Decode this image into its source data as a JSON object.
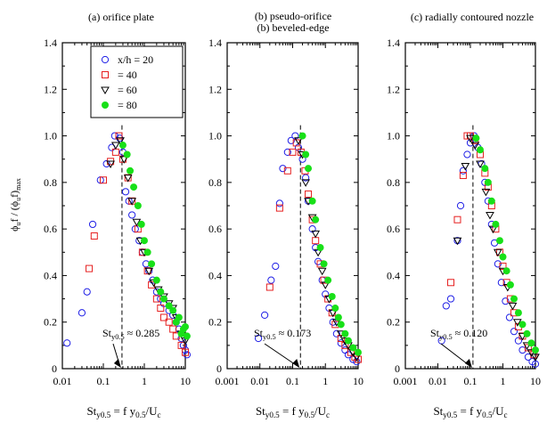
{
  "figure": {
    "ylabel_main": "ϕ",
    "ylabel_sub1": "u",
    "ylabel_mid": "f / (ϕ",
    "ylabel_sub2": "u",
    "ylabel_tail": "f)",
    "ylabel_sub3": "max"
  },
  "legend": {
    "entries": [
      {
        "label": "x/h = 20",
        "marker": "circle",
        "color": "#1f1fe6"
      },
      {
        "label": "= 40",
        "marker": "square",
        "color": "#e61f1f"
      },
      {
        "label": "= 60",
        "marker": "triangle-down",
        "color": "#000000"
      },
      {
        "label": "= 80",
        "marker": "filled-circle",
        "color": "#18e018"
      }
    ]
  },
  "chart_data": [
    {
      "type": "scatter",
      "title": "(a)  orifice plate",
      "xlabel": "St_y0.5 = f y_0.5/U_c",
      "xscale": "log",
      "xlim": [
        0.01,
        10
      ],
      "ylim": [
        0,
        1.4
      ],
      "xticks": [
        "0.01",
        "0.1",
        "1",
        "10"
      ],
      "yticks": [
        "0",
        "0.2",
        "0.4",
        "0.6",
        "0.8",
        "1.0",
        "1.2",
        "1.4"
      ],
      "annotation": "St_y0.5 ≈ 0.285",
      "peak_st": 0.285,
      "series": [
        {
          "name": "x/h = 20",
          "points": [
            [
              0.013,
              0.11
            ],
            [
              0.03,
              0.24
            ],
            [
              0.04,
              0.33
            ],
            [
              0.055,
              0.62
            ],
            [
              0.085,
              0.81
            ],
            [
              0.12,
              0.88
            ],
            [
              0.16,
              0.95
            ],
            [
              0.19,
              1.0
            ],
            [
              0.25,
              0.99
            ],
            [
              0.3,
              0.93
            ],
            [
              0.35,
              0.76
            ],
            [
              0.42,
              0.72
            ],
            [
              0.5,
              0.66
            ],
            [
              0.6,
              0.6
            ],
            [
              0.75,
              0.55
            ],
            [
              0.9,
              0.5
            ],
            [
              1.1,
              0.45
            ],
            [
              1.3,
              0.42
            ],
            [
              1.6,
              0.38
            ],
            [
              2.0,
              0.33
            ],
            [
              2.5,
              0.3
            ],
            [
              3.0,
              0.28
            ],
            [
              4.0,
              0.25
            ],
            [
              5.0,
              0.23
            ],
            [
              6.0,
              0.2
            ],
            [
              7.0,
              0.17
            ],
            [
              8.0,
              0.13
            ],
            [
              9.0,
              0.1
            ],
            [
              10.0,
              0.08
            ],
            [
              11.0,
              0.06
            ]
          ]
        },
        {
          "name": "= 40",
          "points": [
            [
              0.045,
              0.43
            ],
            [
              0.06,
              0.57
            ],
            [
              0.1,
              0.81
            ],
            [
              0.15,
              0.89
            ],
            [
              0.2,
              0.93
            ],
            [
              0.24,
              1.0
            ],
            [
              0.3,
              0.9
            ],
            [
              0.4,
              0.82
            ],
            [
              0.5,
              0.72
            ],
            [
              0.7,
              0.6
            ],
            [
              0.9,
              0.5
            ],
            [
              1.2,
              0.42
            ],
            [
              1.5,
              0.36
            ],
            [
              2.0,
              0.3
            ],
            [
              2.5,
              0.26
            ],
            [
              3.0,
              0.22
            ],
            [
              4.0,
              0.2
            ],
            [
              5.0,
              0.17
            ],
            [
              6.0,
              0.14
            ],
            [
              8.0,
              0.1
            ],
            [
              10.0,
              0.07
            ]
          ]
        },
        {
          "name": "= 60",
          "points": [
            [
              0.15,
              0.88
            ],
            [
              0.2,
              0.96
            ],
            [
              0.26,
              0.98
            ],
            [
              0.32,
              0.9
            ],
            [
              0.4,
              0.82
            ],
            [
              0.5,
              0.72
            ],
            [
              0.65,
              0.63
            ],
            [
              0.8,
              0.55
            ],
            [
              1.0,
              0.5
            ],
            [
              1.3,
              0.42
            ],
            [
              1.7,
              0.37
            ],
            [
              2.2,
              0.34
            ],
            [
              3.0,
              0.31
            ],
            [
              4.0,
              0.28
            ],
            [
              5.0,
              0.26
            ],
            [
              6.0,
              0.22
            ],
            [
              8.0,
              0.15
            ],
            [
              10.0,
              0.12
            ]
          ]
        },
        {
          "name": "= 80",
          "points": [
            [
              0.3,
              0.96
            ],
            [
              0.38,
              0.92
            ],
            [
              0.45,
              0.85
            ],
            [
              0.55,
              0.78
            ],
            [
              0.7,
              0.7
            ],
            [
              0.85,
              0.62
            ],
            [
              1.0,
              0.55
            ],
            [
              1.2,
              0.5
            ],
            [
              1.5,
              0.45
            ],
            [
              2.0,
              0.38
            ],
            [
              2.5,
              0.33
            ],
            [
              3.0,
              0.3
            ],
            [
              4.0,
              0.27
            ],
            [
              5.0,
              0.25
            ],
            [
              6.0,
              0.2
            ],
            [
              7.0,
              0.22
            ],
            [
              8.0,
              0.15
            ],
            [
              9.0,
              0.17
            ],
            [
              10.0,
              0.18
            ],
            [
              11.0,
              0.14
            ]
          ]
        }
      ]
    },
    {
      "type": "scatter",
      "title": "(b) pseudo-orifice",
      "title2": "(b) beveled-edge",
      "xlabel": "St_y0.5 = f y_0.5/U_c",
      "xscale": "log",
      "xlim": [
        0.001,
        10
      ],
      "ylim": [
        0,
        1.4
      ],
      "xticks": [
        "0.001",
        "0.01",
        "0.1",
        "1",
        "10"
      ],
      "yticks": [
        "0",
        "0.2",
        "0.4",
        "0.6",
        "0.8",
        "1.0",
        "1.2",
        "1.4"
      ],
      "annotation": "St_y0.5 ≈ 0.173",
      "peak_st": 0.173,
      "series": [
        {
          "name": "x/h = 20",
          "points": [
            [
              0.009,
              0.13
            ],
            [
              0.014,
              0.23
            ],
            [
              0.022,
              0.38
            ],
            [
              0.03,
              0.44
            ],
            [
              0.04,
              0.71
            ],
            [
              0.05,
              0.86
            ],
            [
              0.07,
              0.93
            ],
            [
              0.09,
              0.98
            ],
            [
              0.12,
              1.0
            ],
            [
              0.15,
              0.95
            ],
            [
              0.2,
              0.9
            ],
            [
              0.25,
              0.82
            ],
            [
              0.3,
              0.72
            ],
            [
              0.4,
              0.6
            ],
            [
              0.5,
              0.52
            ],
            [
              0.6,
              0.46
            ],
            [
              0.8,
              0.38
            ],
            [
              1.0,
              0.32
            ],
            [
              1.3,
              0.26
            ],
            [
              1.7,
              0.2
            ],
            [
              2.2,
              0.15
            ],
            [
              3.0,
              0.11
            ],
            [
              4.0,
              0.08
            ],
            [
              5.0,
              0.06
            ],
            [
              7.0,
              0.04
            ],
            [
              9.0,
              0.03
            ]
          ]
        },
        {
          "name": "= 40",
          "points": [
            [
              0.02,
              0.35
            ],
            [
              0.04,
              0.69
            ],
            [
              0.07,
              0.85
            ],
            [
              0.1,
              0.93
            ],
            [
              0.13,
              0.97
            ],
            [
              0.18,
              0.93
            ],
            [
              0.24,
              0.85
            ],
            [
              0.3,
              0.75
            ],
            [
              0.4,
              0.64
            ],
            [
              0.5,
              0.55
            ],
            [
              0.7,
              0.45
            ],
            [
              0.9,
              0.38
            ],
            [
              1.2,
              0.3
            ],
            [
              1.6,
              0.24
            ],
            [
              2.0,
              0.19
            ],
            [
              3.0,
              0.13
            ],
            [
              4.0,
              0.1
            ],
            [
              6.0,
              0.07
            ],
            [
              8.0,
              0.05
            ],
            [
              10.0,
              0.04
            ]
          ]
        },
        {
          "name": "= 60",
          "points": [
            [
              0.15,
              0.98
            ],
            [
              0.2,
              0.92
            ],
            [
              0.25,
              0.8
            ],
            [
              0.3,
              0.72
            ],
            [
              0.4,
              0.65
            ],
            [
              0.5,
              0.58
            ],
            [
              0.6,
              0.5
            ],
            [
              0.8,
              0.42
            ],
            [
              1.0,
              0.36
            ],
            [
              1.3,
              0.3
            ],
            [
              1.7,
              0.24
            ],
            [
              2.2,
              0.2
            ],
            [
              3.0,
              0.15
            ],
            [
              4.0,
              0.12
            ],
            [
              5.0,
              0.1
            ],
            [
              7.0,
              0.07
            ],
            [
              9.0,
              0.05
            ]
          ]
        },
        {
          "name": "= 80",
          "points": [
            [
              0.2,
              1.0
            ],
            [
              0.25,
              0.92
            ],
            [
              0.3,
              0.86
            ],
            [
              0.4,
              0.72
            ],
            [
              0.5,
              0.64
            ],
            [
              0.7,
              0.52
            ],
            [
              0.9,
              0.45
            ],
            [
              1.2,
              0.38
            ],
            [
              1.6,
              0.31
            ],
            [
              2.0,
              0.26
            ],
            [
              2.5,
              0.22
            ],
            [
              3.0,
              0.19
            ],
            [
              4.0,
              0.15
            ],
            [
              5.0,
              0.12
            ],
            [
              7.0,
              0.09
            ],
            [
              10.0,
              0.07
            ]
          ]
        }
      ]
    },
    {
      "type": "scatter",
      "title": "(c) radially contoured nozzle",
      "xlabel": "St_y0.5 = f y_0.5/U_c",
      "xscale": "log",
      "xlim": [
        0.001,
        10
      ],
      "ylim": [
        0,
        1.4
      ],
      "xticks": [
        "0.001",
        "0.01",
        "0.1",
        "1",
        "10"
      ],
      "yticks": [
        "0",
        "0.2",
        "0.4",
        "0.6",
        "0.8",
        "1.0",
        "1.2",
        "1.4"
      ],
      "annotation": "St_y0.5 ≈ 0.120",
      "peak_st": 0.12,
      "series": [
        {
          "name": "x/h = 20",
          "points": [
            [
              0.013,
              0.12
            ],
            [
              0.018,
              0.27
            ],
            [
              0.025,
              0.3
            ],
            [
              0.04,
              0.55
            ],
            [
              0.05,
              0.7
            ],
            [
              0.06,
              0.85
            ],
            [
              0.08,
              0.92
            ],
            [
              0.1,
              0.97
            ],
            [
              0.13,
              1.0
            ],
            [
              0.17,
              0.95
            ],
            [
              0.22,
              0.88
            ],
            [
              0.28,
              0.8
            ],
            [
              0.35,
              0.72
            ],
            [
              0.45,
              0.62
            ],
            [
              0.55,
              0.54
            ],
            [
              0.7,
              0.45
            ],
            [
              0.9,
              0.37
            ],
            [
              1.2,
              0.29
            ],
            [
              1.6,
              0.22
            ],
            [
              2.2,
              0.16
            ],
            [
              3.0,
              0.12
            ],
            [
              4.0,
              0.08
            ],
            [
              6.0,
              0.05
            ],
            [
              8.0,
              0.03
            ],
            [
              10.0,
              0.02
            ]
          ]
        },
        {
          "name": "= 40",
          "points": [
            [
              0.025,
              0.37
            ],
            [
              0.04,
              0.64
            ],
            [
              0.06,
              0.83
            ],
            [
              0.08,
              1.0
            ],
            [
              0.1,
              1.0
            ],
            [
              0.14,
              0.98
            ],
            [
              0.2,
              0.92
            ],
            [
              0.28,
              0.84
            ],
            [
              0.35,
              0.78
            ],
            [
              0.45,
              0.7
            ],
            [
              0.6,
              0.6
            ],
            [
              0.8,
              0.5
            ],
            [
              1.0,
              0.44
            ],
            [
              1.3,
              0.37
            ],
            [
              1.7,
              0.3
            ],
            [
              2.2,
              0.24
            ],
            [
              3.0,
              0.18
            ],
            [
              4.0,
              0.14
            ],
            [
              6.0,
              0.09
            ],
            [
              9.0,
              0.06
            ]
          ]
        },
        {
          "name": "= 60",
          "points": [
            [
              0.04,
              0.55
            ],
            [
              0.07,
              0.87
            ],
            [
              0.1,
              0.99
            ],
            [
              0.14,
              0.96
            ],
            [
              0.2,
              0.88
            ],
            [
              0.3,
              0.76
            ],
            [
              0.4,
              0.66
            ],
            [
              0.5,
              0.6
            ],
            [
              0.7,
              0.5
            ],
            [
              1.0,
              0.42
            ],
            [
              1.4,
              0.35
            ],
            [
              2.0,
              0.27
            ],
            [
              2.8,
              0.2
            ],
            [
              4.0,
              0.14
            ],
            [
              5.5,
              0.1
            ],
            [
              7.5,
              0.07
            ],
            [
              10.0,
              0.05
            ]
          ]
        },
        {
          "name": "= 80",
          "points": [
            [
              0.15,
              0.99
            ],
            [
              0.2,
              0.94
            ],
            [
              0.28,
              0.86
            ],
            [
              0.35,
              0.8
            ],
            [
              0.45,
              0.72
            ],
            [
              0.6,
              0.62
            ],
            [
              0.8,
              0.55
            ],
            [
              1.0,
              0.48
            ],
            [
              1.3,
              0.42
            ],
            [
              1.7,
              0.36
            ],
            [
              2.2,
              0.3
            ],
            [
              3.0,
              0.24
            ],
            [
              4.0,
              0.19
            ],
            [
              5.5,
              0.15
            ],
            [
              7.5,
              0.11
            ],
            [
              10.0,
              0.08
            ]
          ]
        }
      ]
    }
  ]
}
